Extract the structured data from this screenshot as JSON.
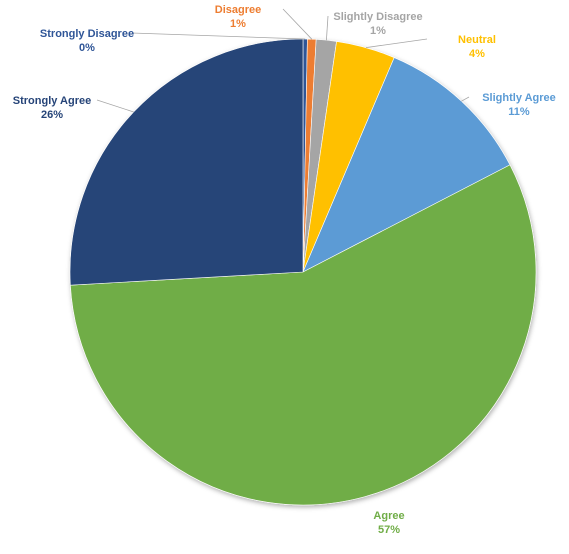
{
  "chart_data": {
    "type": "pie",
    "title": "",
    "slices": [
      {
        "label": "Strongly Disagree",
        "value": 0.3,
        "display": "0%",
        "color": "#2F5597"
      },
      {
        "label": "Disagree",
        "value": 0.6,
        "display": "1%",
        "color": "#ED7D31"
      },
      {
        "label": "Slightly Disagree",
        "value": 1.4,
        "display": "1%",
        "color": "#A5A5A5"
      },
      {
        "label": "Neutral",
        "value": 4.1,
        "display": "4%",
        "color": "#FFC000"
      },
      {
        "label": "Slightly Agree",
        "value": 11.0,
        "display": "11%",
        "color": "#5B9BD5"
      },
      {
        "label": "Agree",
        "value": 56.7,
        "display": "57%",
        "color": "#70AD47"
      },
      {
        "label": "Strongly Agree",
        "value": 25.9,
        "display": "26%",
        "color": "#264478"
      }
    ],
    "start_angle": "12 o'clock",
    "direction": "clockwise",
    "legend": "none",
    "data_labels": "outside with leader lines"
  }
}
